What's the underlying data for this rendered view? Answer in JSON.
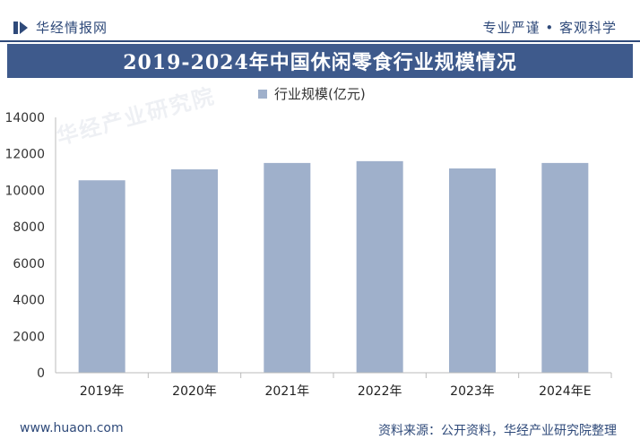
{
  "header": {
    "brand": "华经情报网",
    "tagline": "专业严谨 • 客观科学"
  },
  "title": "2019-2024年中国休闲零食行业规模情况",
  "legend": {
    "series_label": "行业规模(亿元)"
  },
  "colors": {
    "brand": "#2f4a7a",
    "title_bg": "#3e5a8c",
    "bar": "#9fb0cb"
  },
  "chart_data": {
    "type": "bar",
    "title": "2019-2024年中国休闲零食行业规模情况",
    "categories": [
      "2019年",
      "2020年",
      "2021年",
      "2022年",
      "2023年",
      "2024年E"
    ],
    "series": [
      {
        "name": "行业规模(亿元)",
        "values": [
          10550,
          11150,
          11500,
          11600,
          11200,
          11500
        ]
      }
    ],
    "ylim": [
      0,
      14000
    ],
    "yticks": [
      0,
      2000,
      4000,
      6000,
      8000,
      10000,
      12000,
      14000
    ],
    "xlabel": "",
    "ylabel": "",
    "grid": false,
    "legend_position": "top-center"
  },
  "footer": {
    "website": "www.huaon.com",
    "source": "资料来源：公开资料，华经产业研究院整理"
  },
  "watermark": {
    "text": "华经产业研究院"
  }
}
